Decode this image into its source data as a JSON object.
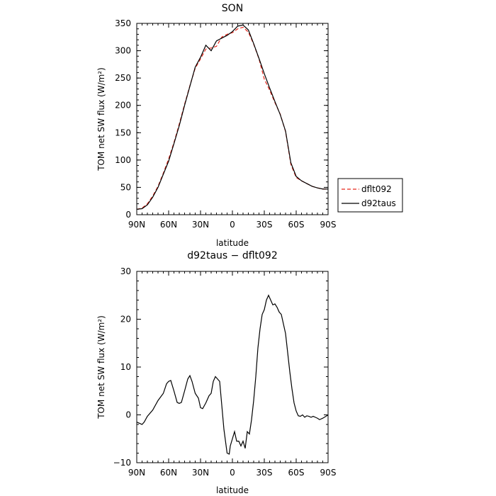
{
  "chart_data": [
    {
      "type": "line",
      "title": "SON",
      "xlabel": "latitude",
      "ylabel": "TOM net SW flux (W/m²)",
      "x_ticks": [
        "90N",
        "60N",
        "30N",
        "0",
        "30S",
        "60S",
        "90S"
      ],
      "y_ticks": [
        "0",
        "50",
        "100",
        "150",
        "200",
        "250",
        "300",
        "350"
      ],
      "xlim": [
        90,
        -90
      ],
      "ylim": [
        0,
        350
      ],
      "legend_position": "outside-right",
      "series": [
        {
          "name": "dflt092",
          "color": "#e8281c",
          "dash": "dashed",
          "x": [
            90,
            85,
            80,
            75,
            70,
            65,
            60,
            55,
            50,
            45,
            40,
            35,
            30,
            25,
            20,
            15,
            10,
            5,
            0,
            -5,
            -10,
            -15,
            -20,
            -25,
            -30,
            -35,
            -40,
            -45,
            -50,
            -55,
            -60,
            -65,
            -70,
            -75,
            -80,
            -85,
            -90
          ],
          "values": [
            10,
            12,
            20,
            34,
            52,
            76,
            102,
            132,
            166,
            202,
            236,
            268,
            285,
            303,
            305,
            308,
            325,
            330,
            333,
            340,
            343,
            334,
            312,
            285,
            248,
            228,
            205,
            184,
            152,
            92,
            68,
            62,
            57,
            52,
            49,
            47,
            47
          ]
        },
        {
          "name": "d92taus",
          "color": "#000000",
          "dash": "solid",
          "x": [
            90,
            85,
            80,
            75,
            70,
            65,
            60,
            55,
            50,
            45,
            40,
            35,
            30,
            25,
            20,
            15,
            10,
            5,
            0,
            -5,
            -10,
            -15,
            -20,
            -25,
            -30,
            -35,
            -40,
            -45,
            -50,
            -55,
            -60,
            -65,
            -70,
            -75,
            -80,
            -85,
            -90
          ],
          "values": [
            10,
            11,
            18,
            32,
            50,
            74,
            98,
            130,
            163,
            200,
            235,
            270,
            288,
            310,
            300,
            318,
            323,
            328,
            335,
            345,
            347,
            338,
            313,
            286,
            258,
            232,
            207,
            183,
            153,
            95,
            70,
            62,
            57,
            52,
            49,
            47,
            47
          ]
        }
      ]
    },
    {
      "type": "line",
      "title": "d92taus − dflt092",
      "xlabel": "latitude",
      "ylabel": "TOM net SW flux (W/m²)",
      "x_ticks": [
        "90N",
        "60N",
        "30N",
        "0",
        "30S",
        "60S",
        "90S"
      ],
      "y_ticks": [
        "−10",
        "0",
        "10",
        "20",
        "30"
      ],
      "xlim": [
        90,
        -90
      ],
      "ylim": [
        -10,
        30
      ],
      "series": [
        {
          "name": "",
          "color": "#000000",
          "dash": "solid",
          "x": [
            90,
            87,
            85,
            83,
            80,
            75,
            70,
            65,
            62,
            60,
            58,
            55,
            52,
            50,
            48,
            45,
            42,
            40,
            38,
            35,
            32,
            30,
            28,
            25,
            22,
            20,
            18,
            16,
            14,
            12,
            10,
            8,
            5,
            3,
            2,
            0,
            -2,
            -4,
            -6,
            -8,
            -10,
            -12,
            -14,
            -16,
            -18,
            -20,
            -22,
            -24,
            -26,
            -28,
            -30,
            -32,
            -34,
            -36,
            -38,
            -40,
            -42,
            -44,
            -46,
            -48,
            -50,
            -52,
            -54,
            -56,
            -58,
            -60,
            -62,
            -64,
            -66,
            -68,
            -70,
            -72,
            -74,
            -76,
            -78,
            -80,
            -82,
            -85,
            -88,
            -90
          ],
          "values": [
            -1.5,
            -1.8,
            -2.0,
            -1.5,
            -0.3,
            1.0,
            3.0,
            4.5,
            6.5,
            7.0,
            7.2,
            5.0,
            2.6,
            2.4,
            2.6,
            5.0,
            7.5,
            8.2,
            7.0,
            4.5,
            3.5,
            1.5,
            1.3,
            2.5,
            4.0,
            4.5,
            7.0,
            8.0,
            7.5,
            7.0,
            2.0,
            -3.0,
            -8.0,
            -8.2,
            -6.5,
            -5.0,
            -3.5,
            -5.5,
            -5.5,
            -6.5,
            -5.5,
            -7.0,
            -3.5,
            -4.0,
            -1.0,
            3.0,
            8.0,
            14.0,
            18.0,
            21.0,
            22.0,
            24.0,
            25.0,
            24.0,
            23.0,
            23.2,
            22.5,
            21.5,
            21.0,
            19.0,
            17.0,
            13.0,
            9.0,
            5.5,
            2.5,
            0.8,
            -0.2,
            -0.3,
            0.0,
            -0.5,
            -0.2,
            -0.3,
            -0.5,
            -0.3,
            -0.5,
            -0.7,
            -1.0,
            -0.7,
            -0.3,
            0.0
          ]
        }
      ]
    }
  ]
}
